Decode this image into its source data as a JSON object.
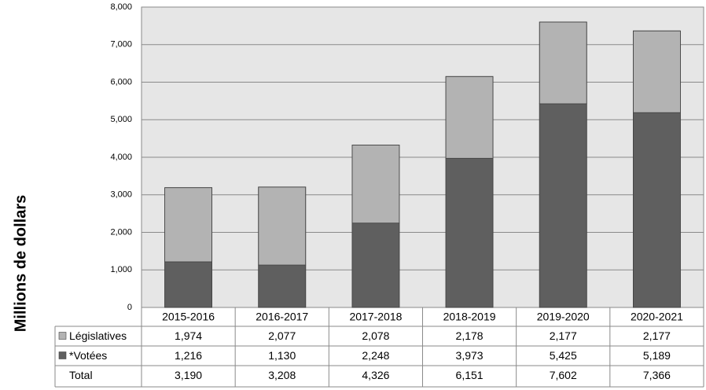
{
  "chart_data": {
    "type": "stacked_bar",
    "y_label": "Millions de dollars",
    "categories": [
      "2015-2016",
      "2016-2017",
      "2017-2018",
      "2018-2019",
      "2019-2020",
      "2020-2021"
    ],
    "series": [
      {
        "name": "Législatives",
        "color": "#b3b3b3",
        "values": [
          1974,
          2077,
          2078,
          2178,
          2177,
          2177
        ],
        "value_labels": [
          "1,974",
          "2,077",
          "2,078",
          "2,178",
          "2,177",
          "2,177"
        ]
      },
      {
        "name": "*Votées",
        "color": "#5f5f5f",
        "values": [
          1216,
          1130,
          2248,
          3973,
          5425,
          5189
        ],
        "value_labels": [
          "1,216",
          "1,130",
          "2,248",
          "3,973",
          "5,425",
          "5,189"
        ]
      }
    ],
    "total": {
      "name": "Total",
      "values": [
        3190,
        3208,
        4326,
        6151,
        7602,
        7366
      ],
      "value_labels": [
        "3,190",
        "3,208",
        "4,326",
        "6,151",
        "7,602",
        "7,366"
      ]
    },
    "ylim": [
      0,
      8000
    ],
    "yticks": [
      0,
      {
        "value": 1000,
        "label": "1,000"
      },
      {
        "value": 2000,
        "label": "2,000"
      },
      {
        "value": 3000,
        "label": "3,000"
      },
      {
        "value": 4000,
        "label": "4,000"
      },
      {
        "value": 5000,
        "label": "5,000"
      },
      {
        "value": 6000,
        "label": "6,000"
      },
      {
        "value": 7000,
        "label": "7,000"
      },
      {
        "value": 8000,
        "label": "8,000"
      }
    ],
    "grid": true
  }
}
